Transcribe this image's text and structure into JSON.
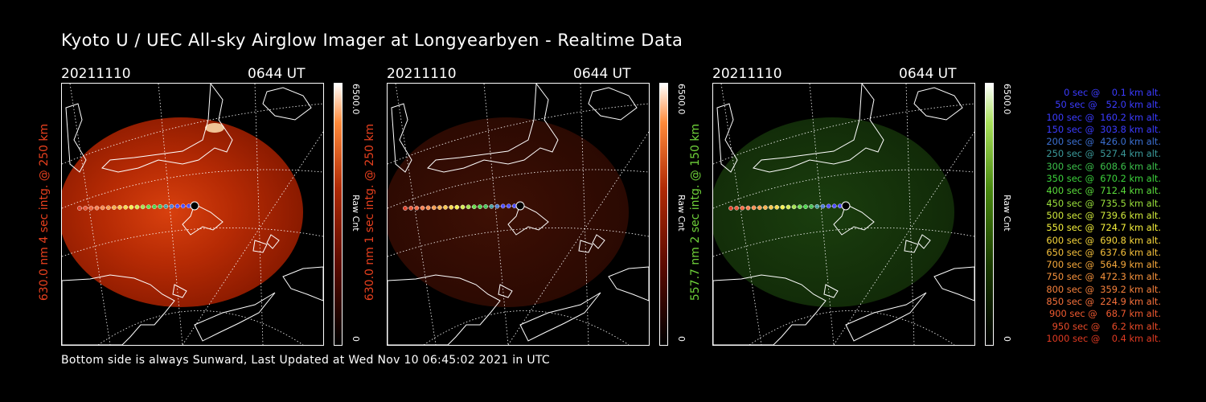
{
  "title": "Kyoto U / UEC All-sky Airglow Imager at Longyearbyen - Realtime Data",
  "footer": "Bottom side is always Sunward, Last Updated at Wed Nov 10 06:45:02 2021 in UTC",
  "panels": [
    {
      "date": "20211110",
      "time": "0644 UT",
      "ylabel": "630.0 nm 4 sec intg. @ 250 km",
      "color": "#e8401e",
      "cmax": "6500.0",
      "cmin": "0",
      "unit": "Raw Cnt",
      "glow": "bright-red"
    },
    {
      "date": "20211110",
      "time": "0644 UT",
      "ylabel": "630.0 nm 1 sec intg. @ 250 km",
      "color": "#e8401e",
      "cmax": "6500.0",
      "cmin": "0",
      "unit": "Raw Cnt",
      "glow": "dim-red"
    },
    {
      "date": "20211110",
      "time": "0644 UT",
      "ylabel": "557.7 nm 2 sec intg. @ 150 km",
      "color": "#6fd23a",
      "cmax": "6500.0",
      "cmin": "0",
      "unit": "Raw Cnt",
      "glow": "dim-green"
    }
  ],
  "legend": [
    {
      "text": "   0 sec @    0.1 km alt.",
      "color": "#3b3bff"
    },
    {
      "text": "  50 sec @   52.0 km alt.",
      "color": "#3b3bff"
    },
    {
      "text": " 100 sec @  160.2 km alt.",
      "color": "#3b3bff"
    },
    {
      "text": " 150 sec @  303.8 km alt.",
      "color": "#3b3bff"
    },
    {
      "text": " 200 sec @  426.0 km alt.",
      "color": "#3b6fd0"
    },
    {
      "text": " 250 sec @  527.4 km alt.",
      "color": "#3b9a9a"
    },
    {
      "text": " 300 sec @  608.6 km alt.",
      "color": "#3bc04a"
    },
    {
      "text": " 350 sec @  670.2 km alt.",
      "color": "#3bd23b"
    },
    {
      "text": " 400 sec @  712.4 km alt.",
      "color": "#5bdc3b"
    },
    {
      "text": " 450 sec @  735.5 km alt.",
      "color": "#9ae03b"
    },
    {
      "text": " 500 sec @  739.6 km alt.",
      "color": "#cfe83b"
    },
    {
      "text": " 550 sec @  724.7 km alt.",
      "color": "#f4f03b"
    },
    {
      "text": " 600 sec @  690.8 km alt.",
      "color": "#f6d63b"
    },
    {
      "text": " 650 sec @  637.6 km alt.",
      "color": "#f6c03b"
    },
    {
      "text": " 700 sec @  564.9 km alt.",
      "color": "#f6a83b"
    },
    {
      "text": " 750 sec @  472.3 km alt.",
      "color": "#f6923b"
    },
    {
      "text": " 800 sec @  359.2 km alt.",
      "color": "#f6803b"
    },
    {
      "text": " 850 sec @  224.9 km alt.",
      "color": "#f6703b"
    },
    {
      "text": " 900 sec @   68.7 km alt.",
      "color": "#f05a30"
    },
    {
      "text": " 950 sec @    6.2 km alt.",
      "color": "#e84a28"
    },
    {
      "text": "1000 sec @    0.4 km alt.",
      "color": "#e03a22"
    }
  ]
}
